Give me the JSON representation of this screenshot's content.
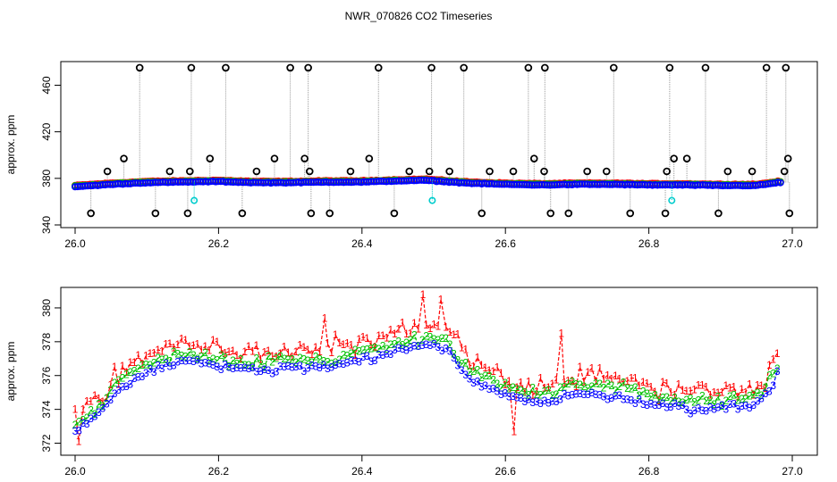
{
  "title": "NWR_070826  CO2 Timeseries",
  "colors": {
    "c1": "#ff0000",
    "c2": "#00c000",
    "c3": "#0000ff",
    "outlier": "#000000",
    "flag": "#00cccc",
    "trace": "#9a9a9a"
  },
  "chart_data": [
    {
      "type": "scatter",
      "panel": "top",
      "title": "NWR_070826  CO2 Timeseries",
      "xlabel": "",
      "ylabel": "approx. ppm",
      "xlim": [
        26.0,
        27.0
      ],
      "ylim": [
        340,
        478
      ],
      "x_ticks": [
        "26.0",
        "26.2",
        "26.4",
        "26.6",
        "26.8",
        "27.0"
      ],
      "y_ticks": [
        "340",
        "380",
        "420",
        "460"
      ],
      "baseline_nodes": {
        "x": [
          26.0,
          26.05,
          26.1,
          26.15,
          26.2,
          26.25,
          26.3,
          26.35,
          26.4,
          26.45,
          26.49,
          26.5,
          26.55,
          26.6,
          26.65,
          26.7,
          26.75,
          26.8,
          26.85,
          26.9,
          26.95,
          26.98
        ],
        "y": [
          373,
          375,
          376.5,
          377,
          377.5,
          376.5,
          376.5,
          377,
          377,
          378,
          378.5,
          378,
          376,
          375,
          374.5,
          375,
          375,
          374.5,
          374.5,
          374,
          374,
          376.5
        ]
      },
      "high_outliers": {
        "x": [
          26.09,
          26.162,
          26.21,
          26.3,
          26.325,
          26.423,
          26.497,
          26.542,
          26.632,
          26.655,
          26.751,
          26.829,
          26.879,
          26.964,
          26.991
        ],
        "y": [
          475,
          475,
          475,
          475,
          475,
          475,
          475,
          475,
          475,
          475,
          475,
          475,
          475,
          475,
          475
        ]
      },
      "mid_outliers": {
        "x": [
          26.045,
          26.068,
          26.132,
          26.16,
          26.188,
          26.253,
          26.278,
          26.32,
          26.327,
          26.384,
          26.41,
          26.466,
          26.494,
          26.522,
          26.578,
          26.611,
          26.64,
          26.654,
          26.714,
          26.741,
          26.825,
          26.835,
          26.853,
          26.91,
          26.944,
          26.989,
          26.994
        ],
        "y": [
          386,
          397,
          386,
          386,
          397,
          386,
          397,
          397,
          386,
          386,
          397,
          386,
          386,
          386,
          386,
          386,
          397,
          386,
          386,
          386,
          386,
          397,
          397,
          386,
          386,
          386,
          397
        ]
      },
      "low_outliers": {
        "x": [
          26.022,
          26.112,
          26.157,
          26.233,
          26.329,
          26.355,
          26.445,
          26.567,
          26.663,
          26.688,
          26.774,
          26.823,
          26.897,
          26.996
        ],
        "y": [
          350,
          350,
          350,
          350,
          350,
          350,
          350,
          350,
          350,
          350,
          350,
          350,
          350,
          350
        ]
      },
      "flagged": {
        "x": [
          26.166,
          26.498,
          26.832
        ],
        "y": [
          361,
          361,
          361
        ]
      }
    },
    {
      "type": "line",
      "panel": "bottom",
      "xlabel": "",
      "ylabel": "approx. ppm",
      "xlim": [
        26.0,
        27.0
      ],
      "ylim": [
        371.5,
        381
      ],
      "x_ticks": [
        "26.0",
        "26.2",
        "26.4",
        "26.6",
        "26.8",
        "27.0"
      ],
      "y_ticks": [
        "372",
        "374",
        "376",
        "378",
        "380"
      ],
      "baseline_nodes": {
        "x": [
          26.0,
          26.03,
          26.06,
          26.1,
          26.15,
          26.2,
          26.25,
          26.3,
          26.35,
          26.4,
          26.45,
          26.5,
          26.52,
          26.55,
          26.6,
          26.65,
          26.7,
          26.75,
          26.8,
          26.85,
          26.9,
          26.95,
          26.97,
          26.985
        ],
        "y": [
          372.8,
          373.8,
          375.2,
          376.4,
          377,
          376.7,
          376.4,
          376.6,
          376.6,
          377,
          377.6,
          378,
          377.6,
          376,
          375,
          374.5,
          375,
          375,
          374.5,
          374.2,
          374.2,
          374.4,
          375.5,
          376.8
        ]
      },
      "series": [
        {
          "name": "1",
          "marker": "1",
          "color": "#ff0000",
          "offset": 0.9,
          "noise": 0.9
        },
        {
          "name": "2",
          "marker": "2",
          "color": "#00c000",
          "offset": 0.35,
          "noise": 0.5
        },
        {
          "name": "3",
          "marker": "3",
          "color": "#0000ff",
          "offset": -0.15,
          "noise": 0.35
        }
      ],
      "events": [
        {
          "series": "1",
          "x": 26.678,
          "y": 378.5
        },
        {
          "series": "1",
          "x": 26.612,
          "y": 372.7
        },
        {
          "series": "1",
          "x": 26.005,
          "y": 372.1
        },
        {
          "series": "1",
          "x": 26.485,
          "y": 380.8
        },
        {
          "series": "1",
          "x": 26.348,
          "y": 379.4
        },
        {
          "series": "1",
          "x": 26.51,
          "y": 380.5
        }
      ]
    }
  ]
}
